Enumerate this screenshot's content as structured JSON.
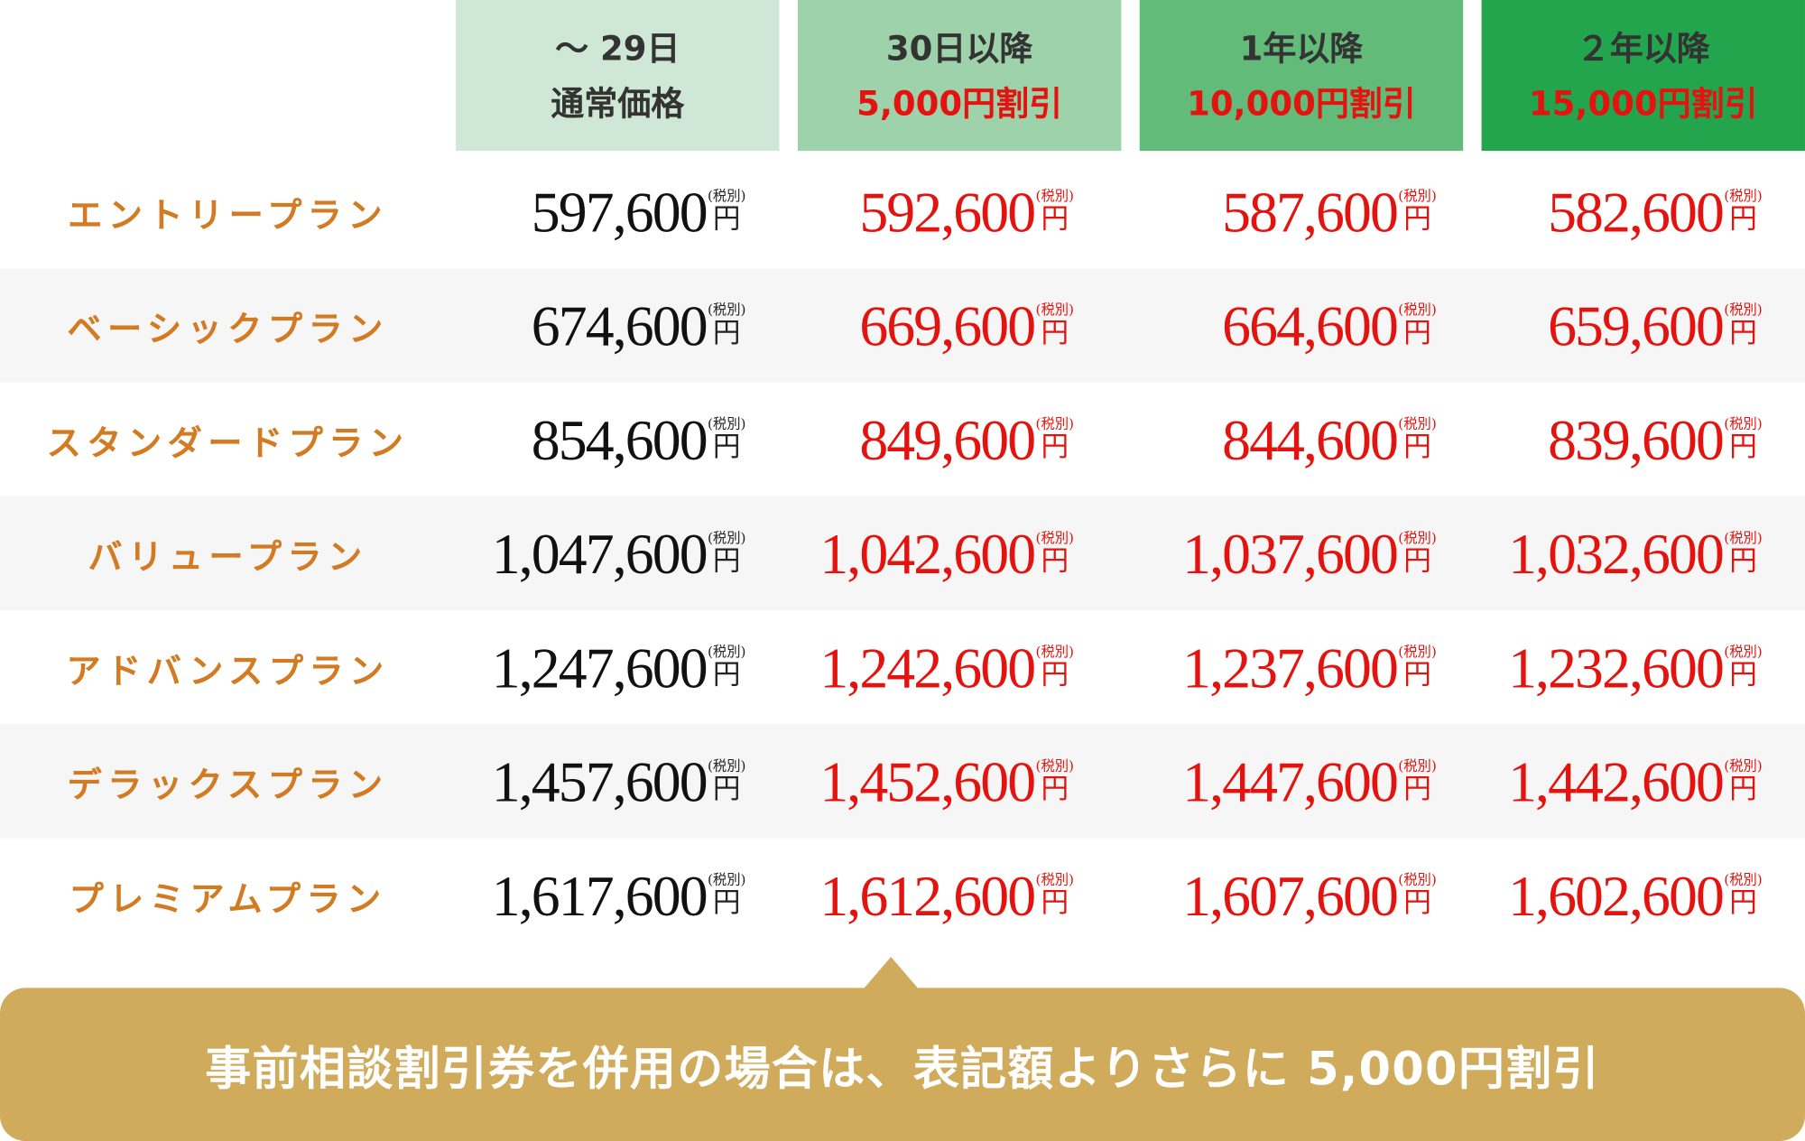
{
  "columns": [
    {
      "line1": "～ 29日",
      "line2": "通常価格",
      "bg": "#cfe7d5"
    },
    {
      "line1": "30日以降",
      "line2": "5,000円割引",
      "bg": "#9dd2ab"
    },
    {
      "line1": "1年以降",
      "line2": "10,000円割引",
      "bg": "#62bb79"
    },
    {
      "line1": "２年以降",
      "line2": "15,000円割引",
      "bg": "#23a54d"
    }
  ],
  "tax_label": "(税別)",
  "yen": "円",
  "plans": [
    {
      "name": "エントリープラン",
      "prices": [
        "597,600",
        "592,600",
        "587,600",
        "582,600"
      ]
    },
    {
      "name": "ベーシックプラン",
      "prices": [
        "674,600",
        "669,600",
        "664,600",
        "659,600"
      ]
    },
    {
      "name": "スタンダードプラン",
      "prices": [
        "854,600",
        "849,600",
        "844,600",
        "839,600"
      ]
    },
    {
      "name": "バリュープラン",
      "prices": [
        "1,047,600",
        "1,042,600",
        "1,037,600",
        "1,032,600"
      ]
    },
    {
      "name": "アドバンスプラン",
      "prices": [
        "1,247,600",
        "1,242,600",
        "1,237,600",
        "1,232,600"
      ]
    },
    {
      "name": "デラックスプラン",
      "prices": [
        "1,457,600",
        "1,452,600",
        "1,447,600",
        "1,442,600"
      ]
    },
    {
      "name": "プレミアムプラン",
      "prices": [
        "1,617,600",
        "1,612,600",
        "1,607,600",
        "1,602,600"
      ]
    }
  ],
  "banner": {
    "text": "事前相談割引券を併用の場合は、表記額よりさらに 5,000円割引"
  },
  "colors": {
    "plan_name": "#d27b22",
    "discount_price": "#e3140f",
    "banner_bg": "#cfab5b"
  }
}
